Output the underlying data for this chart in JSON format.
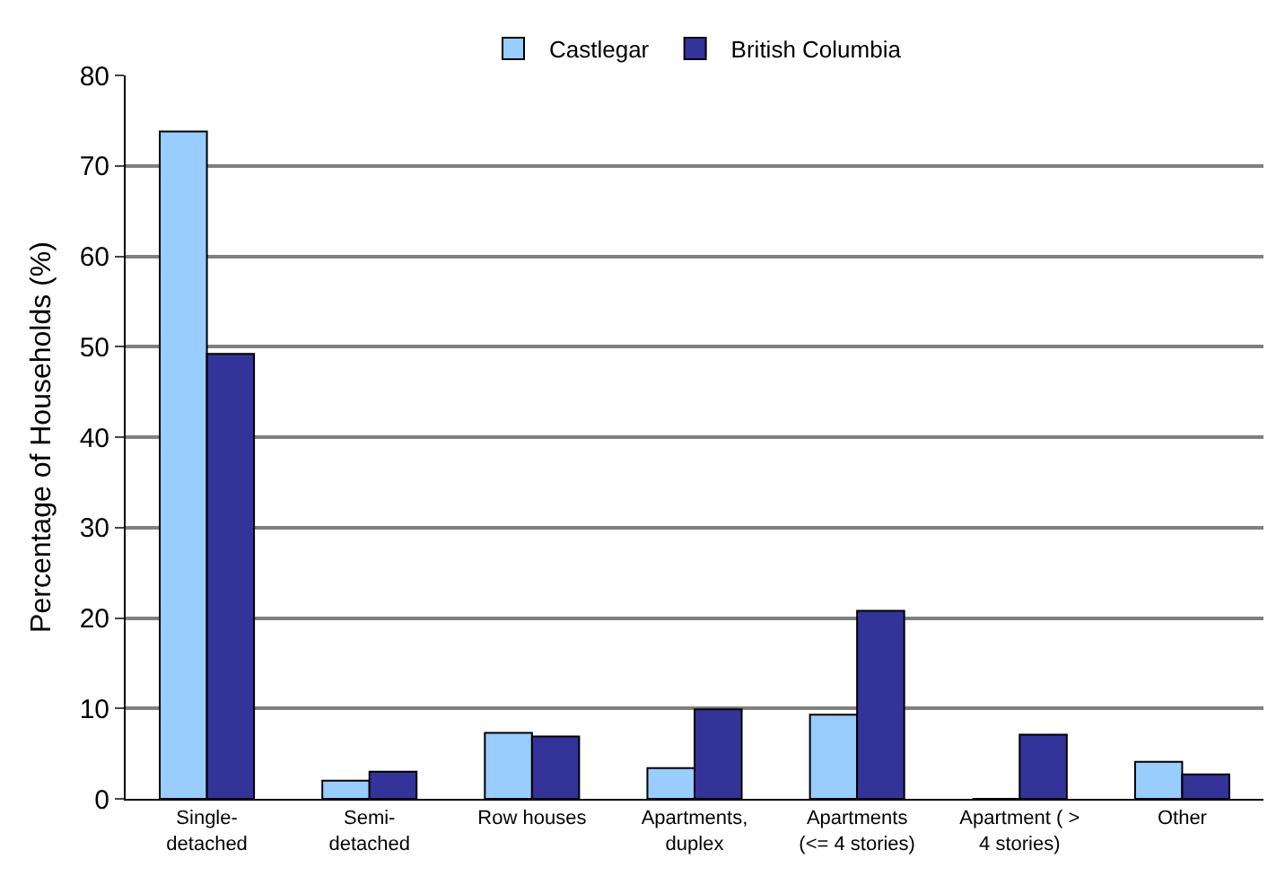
{
  "chart_data": {
    "type": "bar",
    "ylabel": "Percentage of Households (%)",
    "categories": [
      "Single-\ndetached",
      "Semi-\ndetached",
      "Row houses",
      "Apartments,\nduplex",
      "Apartments\n(<= 4 stories)",
      "Apartment ( >\n4 stories)",
      "Other"
    ],
    "series": [
      {
        "name": "Castlegar",
        "color": "#99ccff",
        "values": [
          73.8,
          2.0,
          7.3,
          3.4,
          9.3,
          0,
          4.1
        ]
      },
      {
        "name": "British Columbia",
        "color": "#333399",
        "values": [
          49.2,
          3.0,
          6.9,
          9.9,
          20.8,
          7.1,
          2.7
        ]
      }
    ],
    "ylim": [
      0,
      80
    ],
    "yticks": [
      0,
      10,
      20,
      30,
      40,
      50,
      60,
      70,
      80
    ],
    "grid": "y",
    "legend": "top"
  }
}
